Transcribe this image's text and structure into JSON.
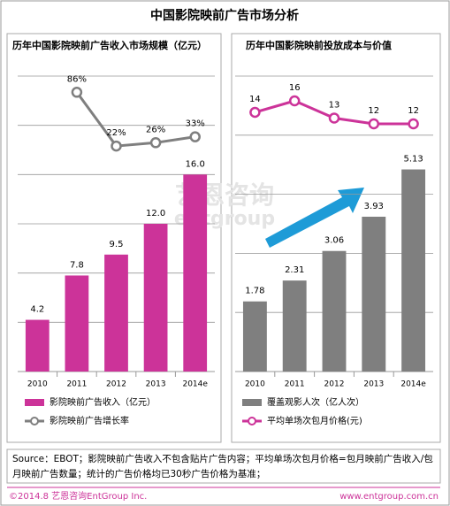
{
  "title": "中国影院映前广告市场分析",
  "watermark": {
    "cn": "艺恩咨询",
    "en": "entgroup"
  },
  "chart_data": [
    {
      "type": "bar",
      "title": "历年中国影院映前广告收入市场规模（亿元）",
      "categories": [
        "2010",
        "2011",
        "2012",
        "2013",
        "2014e"
      ],
      "ylim": [
        0,
        24
      ],
      "yticks": [
        0,
        4,
        8,
        12,
        16,
        20,
        24
      ],
      "grid": true,
      "y2lim": [
        0,
        100
      ],
      "series": [
        {
          "name": "影院映前广告收入（亿元）",
          "color": "#cc3399",
          "values": [
            4.2,
            7.8,
            9.5,
            12,
            16
          ],
          "value_labels": [
            "4.2",
            "7.8",
            "9.5",
            "12.0",
            "16.0"
          ]
        },
        {
          "name": "影院映前广告增长率",
          "color": "#7f7f7f",
          "axis": "y2",
          "values": [
            null,
            86,
            22,
            26,
            33
          ],
          "value_labels": [
            null,
            "86%",
            "22%",
            "26%",
            "33%"
          ]
        }
      ]
    },
    {
      "type": "bar",
      "title": "历年中国影院映前投放成本与价值",
      "categories": [
        "2010",
        "2011",
        "2012",
        "2013",
        "2014e"
      ],
      "ylim": [
        0,
        7.5
      ],
      "yticks": [
        0,
        1.5,
        3,
        4.5,
        6,
        7.5
      ],
      "grid": true,
      "y2lim": [
        10,
        18
      ],
      "series": [
        {
          "name": "覆盖观影人次（亿人次）",
          "color": "#7f7f7f",
          "values": [
            1.78,
            2.31,
            3.06,
            3.93,
            5.13
          ]
        },
        {
          "name": "平均单场次包月价格(元)",
          "color": "#cc3399",
          "axis": "y2",
          "values": [
            14,
            16,
            13,
            12,
            12
          ]
        }
      ]
    }
  ],
  "footer": {
    "note": "Source：EBOT；影院映前广告收入不包含贴片广告内容；平均单场次包月价格=包月映前广告收入/包月映前广告数量；统计的广告价格均已30秒广告价格为基准；",
    "copyright": "©2014.8 艺恩咨询EntGroup Inc.",
    "url": "www.entgroup.com.cn"
  }
}
